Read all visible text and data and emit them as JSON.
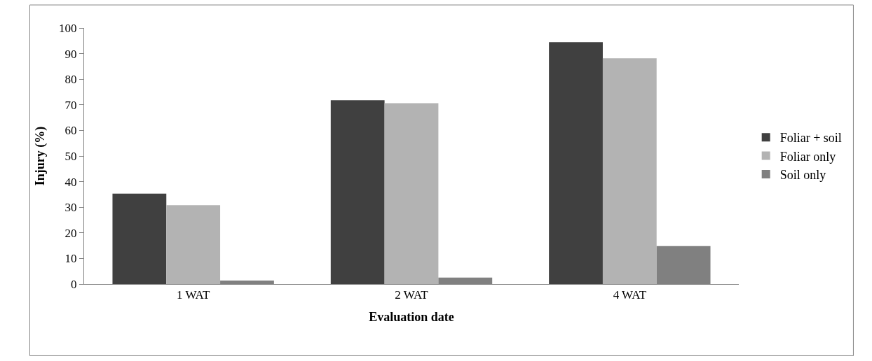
{
  "chart_data": {
    "type": "bar",
    "xlabel": "Evaluation date",
    "ylabel": "Injury (%)",
    "categories": [
      "1 WAT",
      "2 WAT",
      "4 WAT"
    ],
    "series": [
      {
        "name": "Foliar + soil",
        "color": "#404040",
        "values": [
          35.3,
          71.8,
          94.5
        ]
      },
      {
        "name": "Foliar only",
        "color": "#b3b3b3",
        "values": [
          30.8,
          70.6,
          88.2
        ]
      },
      {
        "name": "Soil only",
        "color": "#808080",
        "values": [
          1.4,
          2.5,
          14.8
        ]
      }
    ],
    "ylim": [
      0,
      100
    ],
    "yticks": [
      0,
      10,
      20,
      30,
      40,
      50,
      60,
      70,
      80,
      90,
      100
    ],
    "grid": false,
    "legend": "right"
  }
}
